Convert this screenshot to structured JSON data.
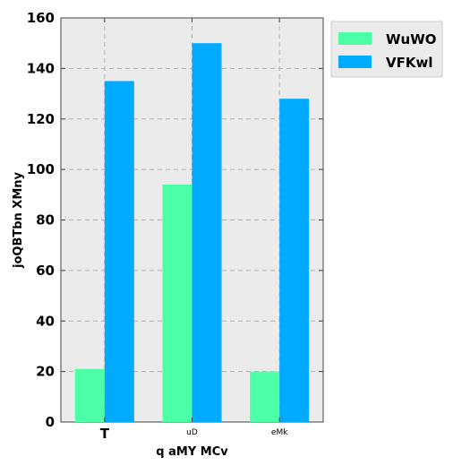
{
  "chart_data": {
    "type": "bar",
    "title": "",
    "xlabel": "q aMY  MCv",
    "ylabel": "joQBTbn XMny",
    "categories": [
      "T",
      "uD",
      "eMk"
    ],
    "series": [
      {
        "name": "WuWO",
        "values": [
          21,
          94,
          20
        ],
        "color": "#4dffa6"
      },
      {
        "name": "VFKwl",
        "values": [
          135,
          150,
          128
        ],
        "color": "#00aaff"
      }
    ],
    "ylim": [
      0,
      160
    ],
    "yticks": [
      "0",
      "20",
      "40",
      "60",
      "80",
      "100",
      "120",
      "140",
      "160"
    ],
    "grid": true,
    "legend_position": "outside-top-right",
    "plot_background": "#ebebeb",
    "grid_color": "#b3b3b3"
  }
}
